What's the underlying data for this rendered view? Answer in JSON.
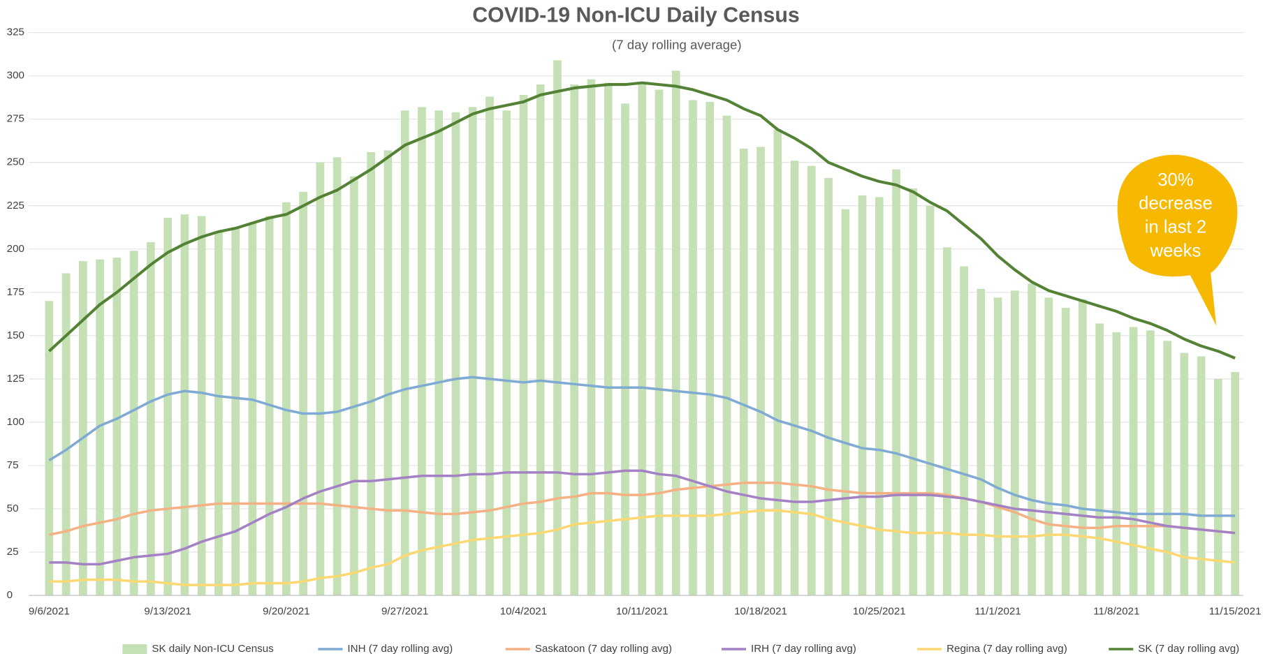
{
  "chart_data": {
    "type": "bar",
    "title": "COVID-19 Non-ICU Daily Census",
    "subtitle": "(7 day rolling average)",
    "annotation": [
      "30%",
      "decrease",
      "in last 2",
      "weeks"
    ],
    "categories": [
      "9/6/2021",
      null,
      null,
      null,
      null,
      null,
      null,
      "9/13/2021",
      null,
      null,
      null,
      null,
      null,
      null,
      "9/20/2021",
      null,
      null,
      null,
      null,
      null,
      null,
      "9/27/2021",
      null,
      null,
      null,
      null,
      null,
      null,
      "10/4/2021",
      null,
      null,
      null,
      null,
      null,
      null,
      "10/11/2021",
      null,
      null,
      null,
      null,
      null,
      null,
      "10/18/2021",
      null,
      null,
      null,
      null,
      null,
      null,
      "10/25/2021",
      null,
      null,
      null,
      null,
      null,
      null,
      "11/1/2021",
      null,
      null,
      null,
      null,
      null,
      null,
      "11/8/2021",
      null,
      null,
      null,
      null,
      null,
      null,
      "11/15/2021"
    ],
    "ylim": [
      0,
      325
    ],
    "yticks": [
      0,
      25,
      50,
      75,
      100,
      125,
      150,
      175,
      200,
      225,
      250,
      275,
      300,
      325
    ],
    "grid": true,
    "legend": "bottom",
    "series": [
      {
        "name": "SK daily Non-ICU Census",
        "type": "bar",
        "color": "#c5e0b4",
        "values": [
          170,
          186,
          193,
          194,
          195,
          199,
          204,
          218,
          220,
          219,
          210,
          212,
          215,
          219,
          227,
          233,
          250,
          253,
          242,
          256,
          257,
          280,
          282,
          280,
          279,
          282,
          288,
          280,
          289,
          295,
          309,
          295,
          298,
          296,
          284,
          296,
          292,
          303,
          286,
          285,
          277,
          258,
          259,
          269,
          251,
          248,
          241,
          223,
          231,
          230,
          246,
          235,
          225,
          201,
          190,
          177,
          172,
          176,
          180,
          172,
          166,
          171,
          157,
          152,
          155,
          153,
          147,
          140,
          138,
          125,
          129
        ]
      },
      {
        "name": "INH (7 day rolling avg)",
        "type": "line",
        "color": "#7faad3",
        "values": [
          78,
          84,
          91,
          98,
          102,
          107,
          112,
          116,
          118,
          117,
          115,
          114,
          113,
          110,
          107,
          105,
          105,
          106,
          109,
          112,
          116,
          119,
          121,
          123,
          125,
          126,
          125,
          124,
          123,
          124,
          123,
          122,
          121,
          120,
          120,
          120,
          119,
          118,
          117,
          116,
          114,
          110,
          106,
          101,
          98,
          95,
          91,
          88,
          85,
          84,
          82,
          79,
          76,
          73,
          70,
          67,
          62,
          58,
          55,
          53,
          52,
          50,
          49,
          48,
          47,
          47,
          47,
          47,
          46,
          46,
          46
        ]
      },
      {
        "name": "Saskatoon (7 day rolling avg)",
        "type": "line",
        "color": "#f4b183",
        "values": [
          35,
          37,
          40,
          42,
          44,
          47,
          49,
          50,
          51,
          52,
          53,
          53,
          53,
          53,
          53,
          53,
          53,
          52,
          51,
          50,
          49,
          49,
          48,
          47,
          47,
          48,
          49,
          51,
          53,
          54,
          56,
          57,
          59,
          59,
          58,
          58,
          59,
          61,
          62,
          63,
          64,
          65,
          65,
          65,
          64,
          63,
          61,
          60,
          59,
          59,
          59,
          59,
          59,
          58,
          56,
          54,
          51,
          48,
          44,
          41,
          40,
          39,
          39,
          40,
          40,
          40,
          40,
          39,
          38,
          37,
          36
        ]
      },
      {
        "name": "IRH (7 day rolling avg)",
        "type": "line",
        "color": "#a481c4",
        "values": [
          19,
          19,
          18,
          18,
          20,
          22,
          23,
          24,
          27,
          31,
          34,
          37,
          42,
          47,
          51,
          56,
          60,
          63,
          66,
          66,
          67,
          68,
          69,
          69,
          69,
          70,
          70,
          71,
          71,
          71,
          71,
          70,
          70,
          71,
          72,
          72,
          70,
          69,
          66,
          63,
          60,
          58,
          56,
          55,
          54,
          54,
          55,
          56,
          57,
          57,
          58,
          58,
          58,
          57,
          56,
          54,
          52,
          50,
          49,
          48,
          47,
          46,
          45,
          45,
          44,
          42,
          40,
          39,
          38,
          37,
          36
        ]
      },
      {
        "name": "Regina (7 day rolling avg)",
        "type": "line",
        "color": "#fbd871",
        "values": [
          8,
          8,
          9,
          9,
          9,
          8,
          8,
          7,
          6,
          6,
          6,
          6,
          7,
          7,
          7,
          8,
          10,
          11,
          13,
          16,
          18,
          23,
          26,
          28,
          30,
          32,
          33,
          34,
          35,
          36,
          38,
          41,
          42,
          43,
          44,
          45,
          46,
          46,
          46,
          46,
          47,
          48,
          49,
          49,
          48,
          47,
          44,
          42,
          40,
          38,
          37,
          36,
          36,
          36,
          35,
          35,
          34,
          34,
          34,
          35,
          35,
          34,
          33,
          31,
          29,
          27,
          25,
          22,
          21,
          20,
          19
        ]
      },
      {
        "name": "SK (7 day rolling avg)",
        "type": "line",
        "color": "#548235",
        "values": [
          141,
          150,
          159,
          168,
          175,
          183,
          191,
          198,
          203,
          207,
          210,
          212,
          215,
          218,
          220,
          225,
          230,
          234,
          240,
          246,
          253,
          260,
          264,
          268,
          273,
          278,
          281,
          283,
          285,
          289,
          291,
          293,
          294,
          295,
          295,
          296,
          295,
          294,
          292,
          289,
          286,
          281,
          277,
          269,
          264,
          258,
          250,
          246,
          242,
          239,
          237,
          233,
          227,
          222,
          214,
          206,
          196,
          188,
          181,
          176,
          173,
          170,
          167,
          164,
          160,
          157,
          153,
          148,
          144,
          141,
          137
        ]
      }
    ]
  }
}
